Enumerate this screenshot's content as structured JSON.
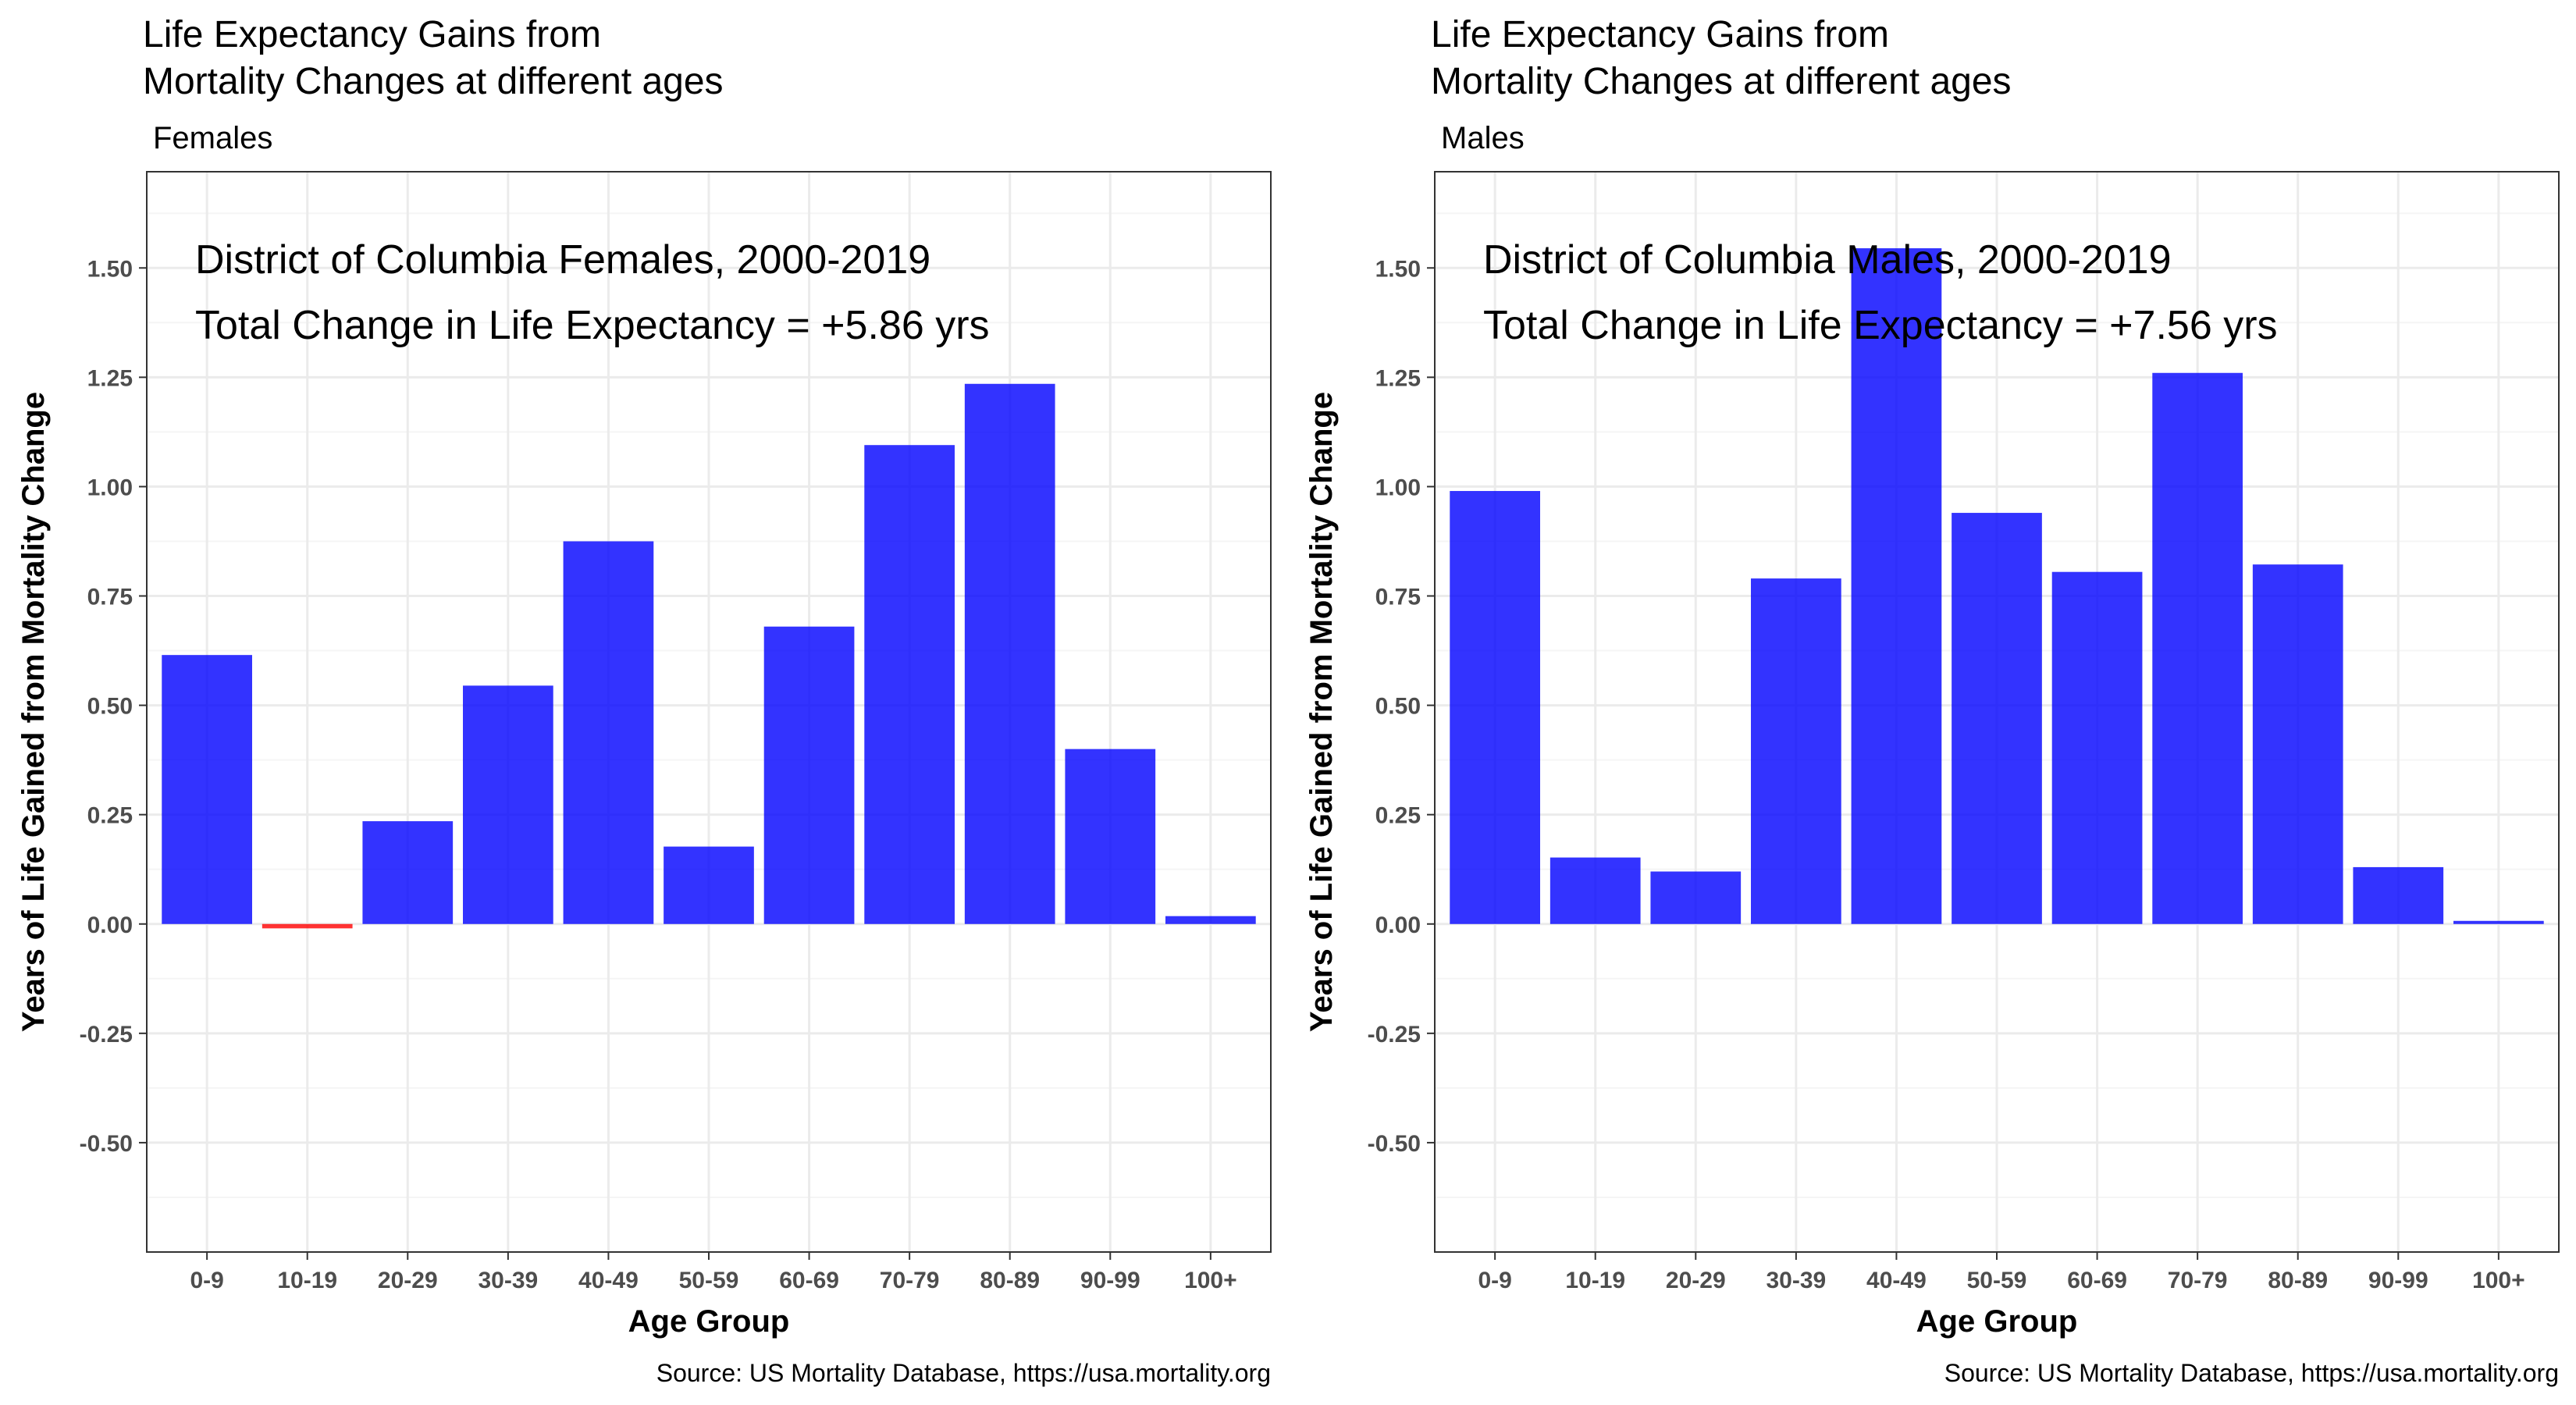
{
  "colors": {
    "positive": "#0000ff",
    "negative": "#ff0000",
    "grid_major": "#ebebeb",
    "grid_minor": "#f5f5f5",
    "panel_border": "#333333",
    "tick_text": "#4d4d4d"
  },
  "chart_data": [
    {
      "type": "bar",
      "title_lines": [
        "Life Expectancy Gains from",
        "Mortality Changes at different ages"
      ],
      "subtitle": "Females",
      "annotation_lines": [
        "District of Columbia Females, 2000-2019",
        "Total Change in Life Expectancy = +5.86 yrs"
      ],
      "xlabel": "Age Group",
      "ylabel": "Years of Life Gained from Mortality Change",
      "caption": "Source: US Mortality Database, https://usa.mortality.org",
      "categories": [
        "0-9",
        "10-19",
        "20-29",
        "30-39",
        "40-49",
        "50-59",
        "60-69",
        "70-79",
        "80-89",
        "90-99",
        "100+"
      ],
      "values": [
        0.615,
        -0.01,
        0.235,
        0.545,
        0.875,
        0.177,
        0.68,
        1.095,
        1.235,
        0.4,
        0.018
      ],
      "ylim": [
        -0.75,
        1.72
      ],
      "yticks": [
        -0.5,
        -0.25,
        0,
        0.25,
        0.5,
        0.75,
        1,
        1.25,
        1.5
      ],
      "ytick_labels": [
        "-0.50",
        "-0.25",
        "0.00",
        "0.25",
        "0.50",
        "0.75",
        "1.00",
        "1.25",
        "1.50"
      ],
      "grid": true,
      "legend": "none"
    },
    {
      "type": "bar",
      "title_lines": [
        "Life Expectancy Gains from",
        "Mortality Changes at different ages"
      ],
      "subtitle": "Males",
      "annotation_lines": [
        "District of Columbia Males, 2000-2019",
        "Total Change in Life Expectancy = +7.56 yrs"
      ],
      "xlabel": "Age Group",
      "ylabel": "Years of Life Gained from Mortality Change",
      "caption": "Source: US Mortality Database, https://usa.mortality.org",
      "categories": [
        "0-9",
        "10-19",
        "20-29",
        "30-39",
        "40-49",
        "50-59",
        "60-69",
        "70-79",
        "80-89",
        "90-99",
        "100+"
      ],
      "values": [
        0.99,
        0.152,
        0.12,
        0.79,
        1.545,
        0.94,
        0.805,
        1.26,
        0.822,
        0.13,
        0.004
      ],
      "ylim": [
        -0.75,
        1.72
      ],
      "yticks": [
        -0.5,
        -0.25,
        0,
        0.25,
        0.5,
        0.75,
        1,
        1.25,
        1.5
      ],
      "ytick_labels": [
        "-0.50",
        "-0.25",
        "0.00",
        "0.25",
        "0.50",
        "0.75",
        "1.00",
        "1.25",
        "1.50"
      ],
      "grid": true,
      "legend": "none"
    }
  ]
}
